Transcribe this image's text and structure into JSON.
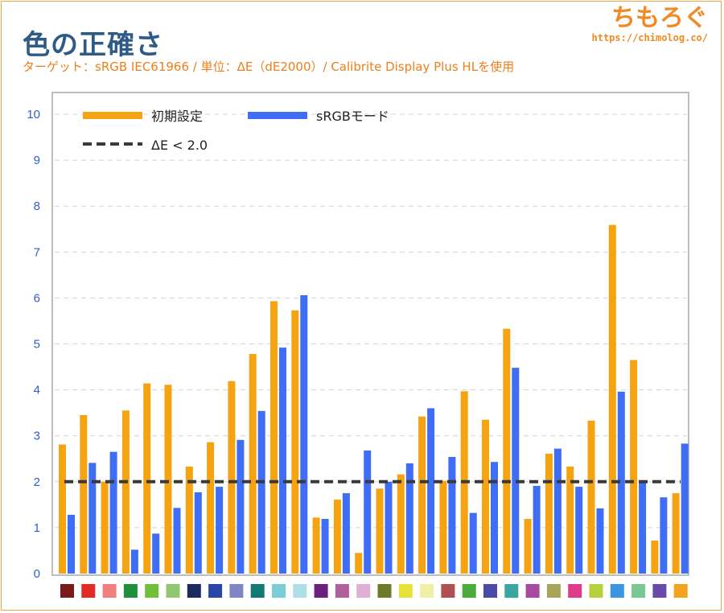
{
  "header": {
    "title": "色の正確さ",
    "subtitle": "ターゲット：sRGB IEC61966 / 単位：ΔE（dE2000）/ Calibrite Display Plus HLを使用"
  },
  "brand": {
    "name": "ちもろぐ",
    "url": "https://chimolog.co/"
  },
  "colors": {
    "series_a": "#f5a310",
    "series_b": "#3f6df5",
    "threshold": "#3a3a3a"
  },
  "chart_data": {
    "type": "bar",
    "ylim": [
      0,
      10
    ],
    "yticks": [
      "0",
      "1",
      "2",
      "3",
      "4",
      "5",
      "6",
      "7",
      "8",
      "9",
      "10"
    ],
    "grid": true,
    "legend_position": "top-left",
    "categories_swatches": [
      "#7b1a1a",
      "#e22b24",
      "#f08080",
      "#1f8f3a",
      "#6fbf3a",
      "#90c870",
      "#1c2a5e",
      "#2746a8",
      "#7f86c4",
      "#127a72",
      "#7ccdd6",
      "#aedfe6",
      "#6b1f7f",
      "#b0609a",
      "#e0b0d4",
      "#6e7a2a",
      "#e6e23a",
      "#f0efa8",
      "#b05050",
      "#4aaa3a",
      "#4a4aa8",
      "#3aa6a0",
      "#a64aa0",
      "#a6a65a",
      "#e03a8a",
      "#b6d23a",
      "#3a96e0",
      "#7ac890",
      "#6a4aa8",
      "#f4a320"
    ],
    "series": [
      {
        "name": "初期設定",
        "values": [
          2.81,
          3.45,
          2.0,
          3.55,
          4.14,
          4.11,
          2.33,
          2.86,
          4.19,
          4.78,
          5.93,
          5.73,
          1.22,
          1.61,
          0.45,
          1.85,
          2.16,
          3.42,
          2.02,
          3.97,
          3.35,
          5.33,
          1.19,
          2.61,
          2.33,
          3.33,
          7.59,
          4.65,
          0.72,
          1.75
        ]
      },
      {
        "name": "sRGBモード",
        "values": [
          1.28,
          2.41,
          2.65,
          0.52,
          0.87,
          1.43,
          1.77,
          1.89,
          2.91,
          3.54,
          4.92,
          6.06,
          1.19,
          1.75,
          2.68,
          2.0,
          2.4,
          3.6,
          2.54,
          1.32,
          2.43,
          4.48,
          1.91,
          2.72,
          1.89,
          1.42,
          3.96,
          2.0,
          1.66,
          2.83
        ]
      }
    ],
    "threshold": {
      "label": "ΔE < 2.0",
      "value": 2.0
    }
  }
}
